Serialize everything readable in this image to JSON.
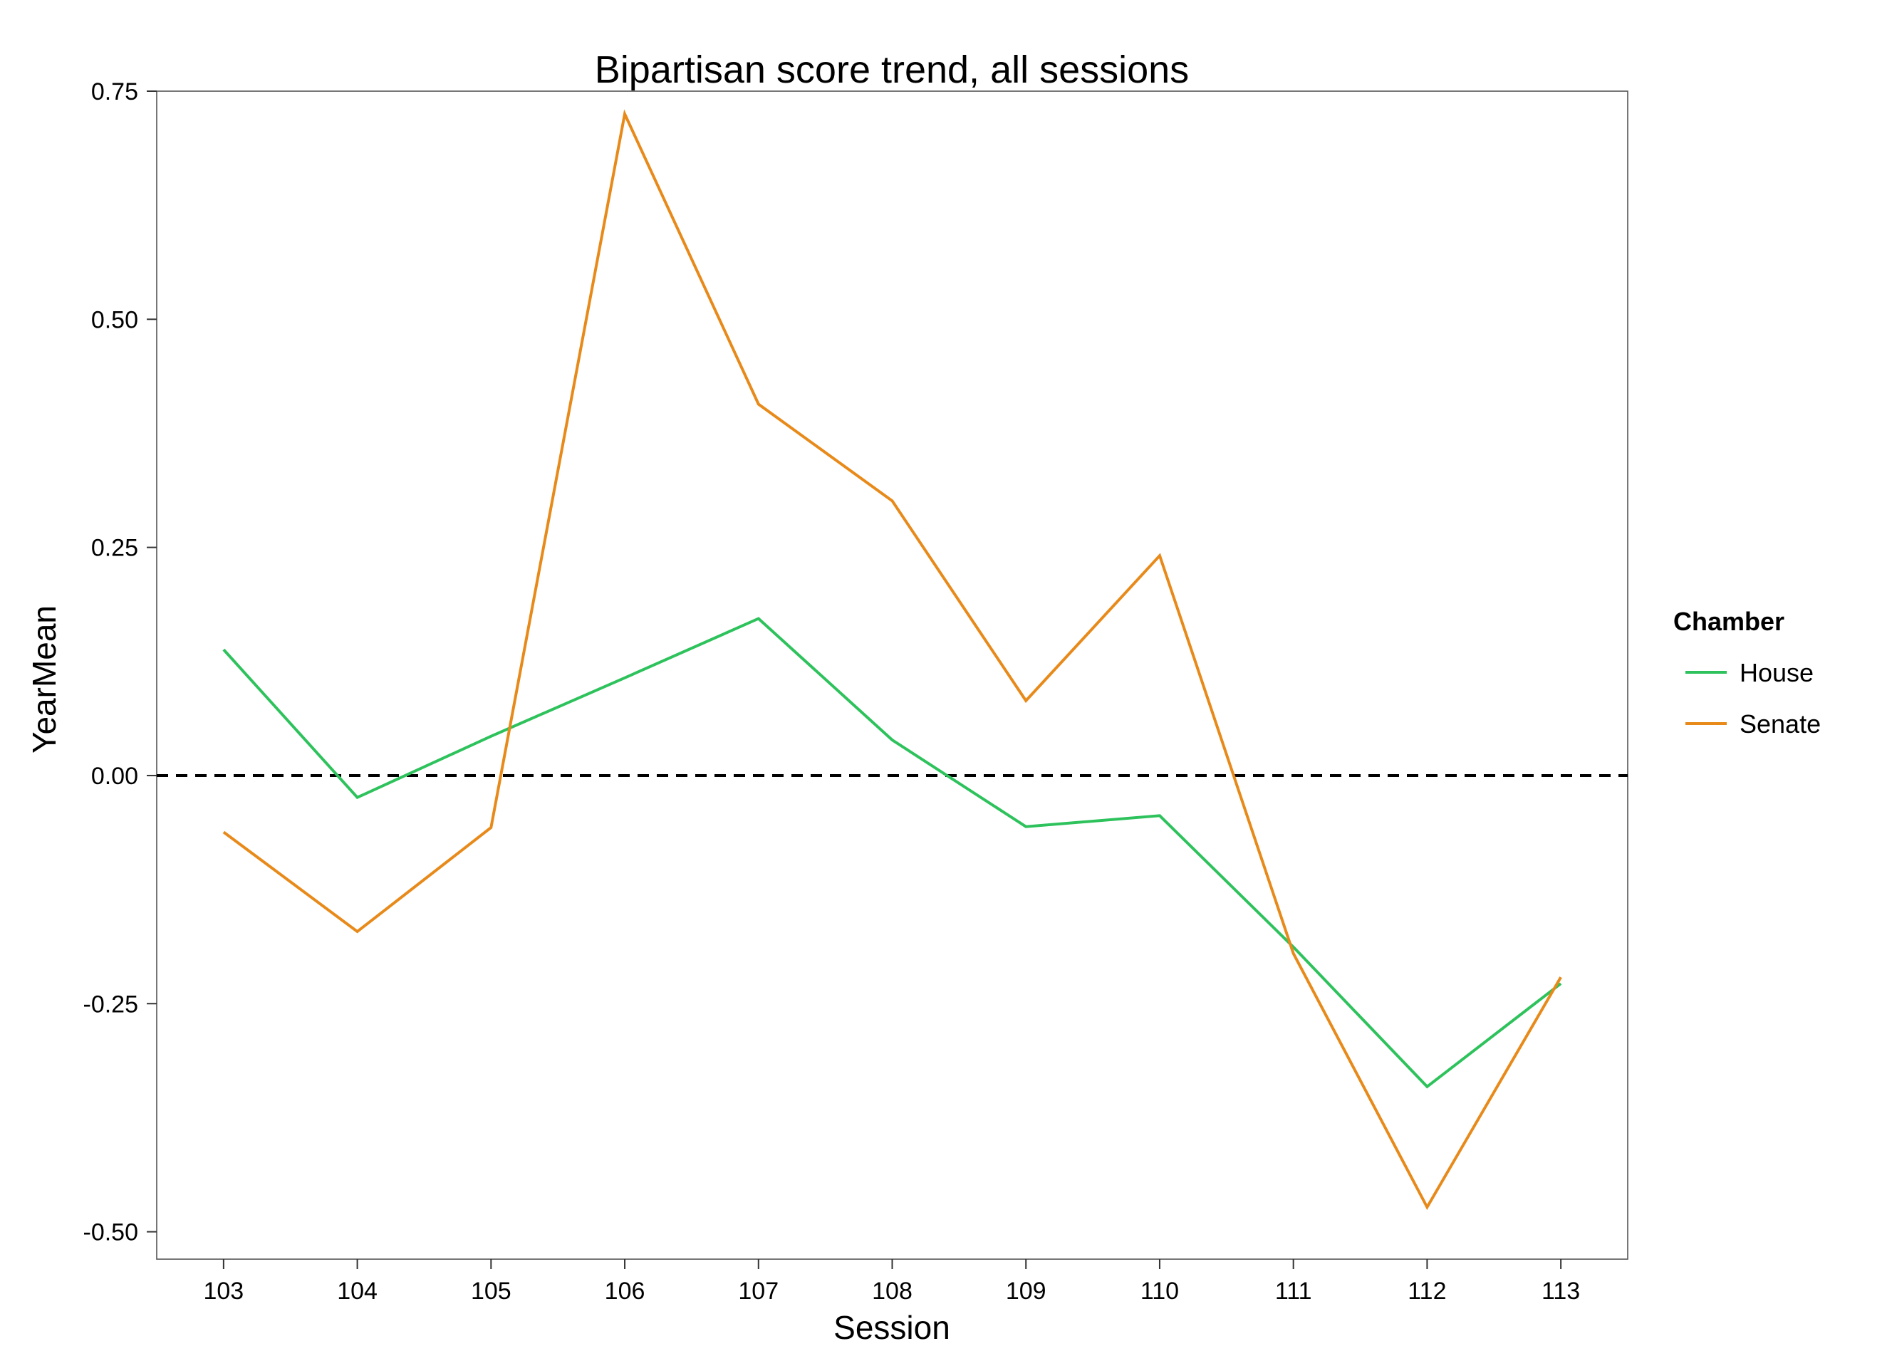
{
  "chart_data": {
    "type": "line",
    "title": "Bipartisan score trend, all sessions",
    "xlabel": "Session",
    "ylabel": "YearMean",
    "x": [
      103,
      104,
      105,
      106,
      107,
      108,
      109,
      110,
      111,
      112,
      113
    ],
    "xticks": [
      "103",
      "104",
      "105",
      "106",
      "107",
      "108",
      "109",
      "110",
      "111",
      "112",
      "113"
    ],
    "xlim": [
      102.5,
      113.5
    ],
    "yticks": [
      -0.5,
      -0.25,
      0,
      0.25,
      0.5,
      0.75
    ],
    "ytick_labels": [
      "-0.50",
      "-0.25",
      "0.00",
      "0.25",
      "0.50",
      "0.75"
    ],
    "ylim": [
      -0.53,
      0.75
    ],
    "grid": false,
    "reference_line": {
      "y": 0,
      "style": "dashed",
      "color": "#000000"
    },
    "legend": {
      "title": "Chamber",
      "position": "right"
    },
    "series": [
      {
        "name": "House",
        "color": "#2ec25c",
        "values": [
          0.138,
          -0.024,
          0.043,
          0.107,
          0.172,
          0.039,
          -0.056,
          -0.044,
          -0.188,
          -0.341,
          -0.228
        ]
      },
      {
        "name": "Senate",
        "color": "#e88a1a",
        "values": [
          -0.062,
          -0.171,
          -0.057,
          0.725,
          0.407,
          0.301,
          0.082,
          0.241,
          -0.195,
          -0.473,
          -0.221
        ]
      }
    ]
  }
}
